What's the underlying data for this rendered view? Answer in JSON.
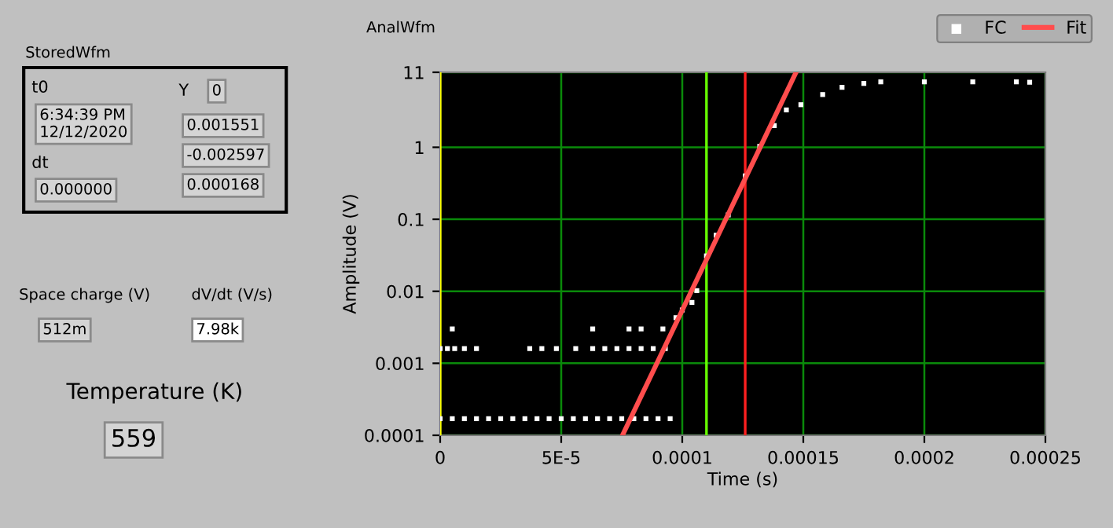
{
  "chart_data": [
    {
      "type": "other",
      "annotations": [
        "StoredWfm",
        "t0",
        "6:34:39 PM\n12/12/2020",
        "dt",
        "0.000000",
        "Y",
        "0",
        "0.001551",
        "-0.002597",
        "0.000168",
        "Space charge (V)",
        "dV/dt (V/s)",
        "512m",
        "7.98k",
        "Temperature (K)",
        "559"
      ]
    },
    {
      "type": "scatter",
      "title": "AnalWfm",
      "xlabel": "Time (s)",
      "ylabel": "Amplitude (V)",
      "log": "y",
      "grid": true,
      "legend": "top right",
      "xlim": [
        0,
        0.00025
      ],
      "ylim": [
        0.0001,
        11
      ],
      "xticks": [
        0,
        {
          "value": 5e-05,
          "label": "5E-5"
        },
        0.0001,
        0.00015,
        0.0002,
        0.00025
      ],
      "yticks": [
        0.0001,
        0.001,
        0.01,
        0.1,
        1,
        11
      ],
      "ref_lines": [
        {
          "axis": "x",
          "value": 0,
          "color": "#ffff00"
        },
        {
          "axis": "x",
          "value": 0.00011,
          "color": "#66ff00"
        },
        {
          "axis": "x",
          "value": 0.000126,
          "color": "#ff2020"
        }
      ],
      "series": [
        {
          "name": "FC",
          "type": "scatter",
          "marker": "square",
          "color": "#ffffff",
          "x": [
            0,
            5e-06,
            1e-05,
            1.5e-05,
            2e-05,
            2.5e-05,
            3e-05,
            3.5e-05,
            4e-05,
            4.5e-05,
            5e-05,
            5.5e-05,
            6e-05,
            6.5e-05,
            7e-05,
            7.5e-05,
            8e-05,
            8.5e-05,
            9e-05,
            9.5e-05,
            0,
            3e-06,
            6e-06,
            1e-05,
            1.5e-05,
            3.7e-05,
            4.2e-05,
            4.8e-05,
            5.6e-05,
            6.3e-05,
            6.8e-05,
            7.3e-05,
            7.8e-05,
            8.3e-05,
            8.8e-05,
            9.3e-05,
            5e-06,
            6.3e-05,
            7.8e-05,
            8.3e-05,
            9.2e-05,
            9.74e-05,
            0.0001,
            0.000104,
            0.000106,
            0.00011,
            0.000114,
            0.000119,
            0.000126,
            0.000132,
            0.000138,
            0.000143,
            0.000149,
            0.000158,
            0.000166,
            0.000175,
            0.000182,
            0.0002,
            0.00022,
            0.000238,
            0.0002435
          ],
          "values": [
            0.00017,
            0.00017,
            0.00017,
            0.00017,
            0.00017,
            0.00017,
            0.00017,
            0.00017,
            0.00017,
            0.00017,
            0.00017,
            0.00017,
            0.00017,
            0.00017,
            0.00017,
            0.00017,
            0.00017,
            0.00017,
            0.00017,
            0.00017,
            0.0016,
            0.0016,
            0.0016,
            0.0016,
            0.0016,
            0.0016,
            0.0016,
            0.0016,
            0.0016,
            0.0016,
            0.0016,
            0.0016,
            0.0016,
            0.0016,
            0.0016,
            0.0016,
            0.003,
            0.003,
            0.003,
            0.003,
            0.003,
            0.0043,
            0.0055,
            0.007,
            0.0102,
            0.031,
            0.06,
            0.115,
            0.4,
            1.03,
            2,
            3.3,
            3.9,
            5.4,
            6.8,
            7.7,
            8.1,
            8.1,
            8.1,
            8.1,
            8
          ]
        },
        {
          "name": "Fit",
          "type": "line",
          "color": "#ff4d4d",
          "x": [
            7.53e-05,
            0.000147
          ],
          "values": [
            0.0001,
            11
          ]
        }
      ]
    }
  ]
}
